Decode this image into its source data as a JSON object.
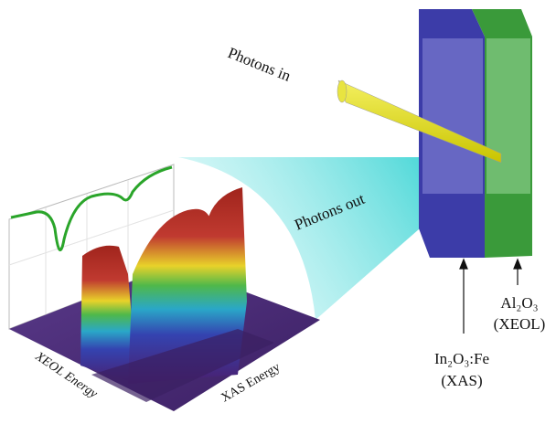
{
  "labels": {
    "photons_in": "Photons in",
    "photons_out": "Photons out",
    "al2o3": "Al₂O₃",
    "xeol": "(XEOL)",
    "in2o3": "In₂O₃:Fe",
    "xas": "(XAS)"
  },
  "axes": {
    "xeol_energy": "XEOL Energy",
    "xas_energy": "XAS Energy"
  }
}
